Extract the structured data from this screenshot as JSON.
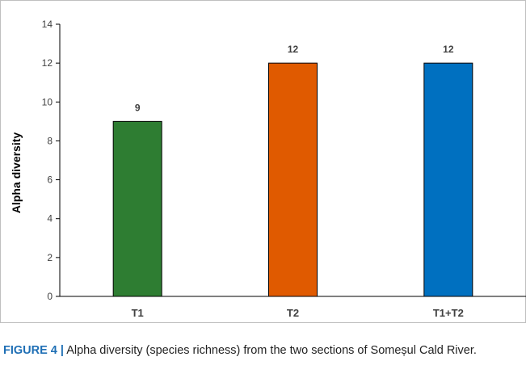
{
  "chart_data": {
    "type": "bar",
    "categories": [
      "T1",
      "T2",
      "T1+T2"
    ],
    "values": [
      9,
      12,
      12
    ],
    "data_labels": [
      "9",
      "12",
      "12"
    ],
    "colors": [
      "#2e7d32",
      "#e05a00",
      "#0070c0"
    ],
    "ylabel": "Alpha diversity",
    "xlabel": "",
    "ylim": [
      0,
      14
    ],
    "yticks": [
      0,
      2,
      4,
      6,
      8,
      10,
      12,
      14
    ],
    "grid": false
  },
  "caption": {
    "label": "FIGURE 4 |",
    "text": " Alpha diversity (species richness) from the two sections of Someșul Cald River."
  }
}
